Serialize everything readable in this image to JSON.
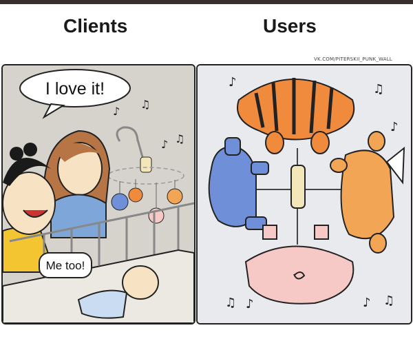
{
  "header": {
    "left_title": "Clients",
    "right_title": "Users",
    "watermark": "VK.COM/PITERSKII_PUNK_WALL"
  },
  "left_panel": {
    "speech_main": "I love it!",
    "speech_secondary": "Me too!"
  },
  "colors": {
    "tiger": "#f08a3c",
    "elephant": "#6f8fd8",
    "fox": "#f2a555",
    "pig": "#f6c9c6",
    "hair_brown": "#b77545",
    "shirt_blue": "#7fa6d8",
    "shirt_yellow": "#f2c531"
  }
}
